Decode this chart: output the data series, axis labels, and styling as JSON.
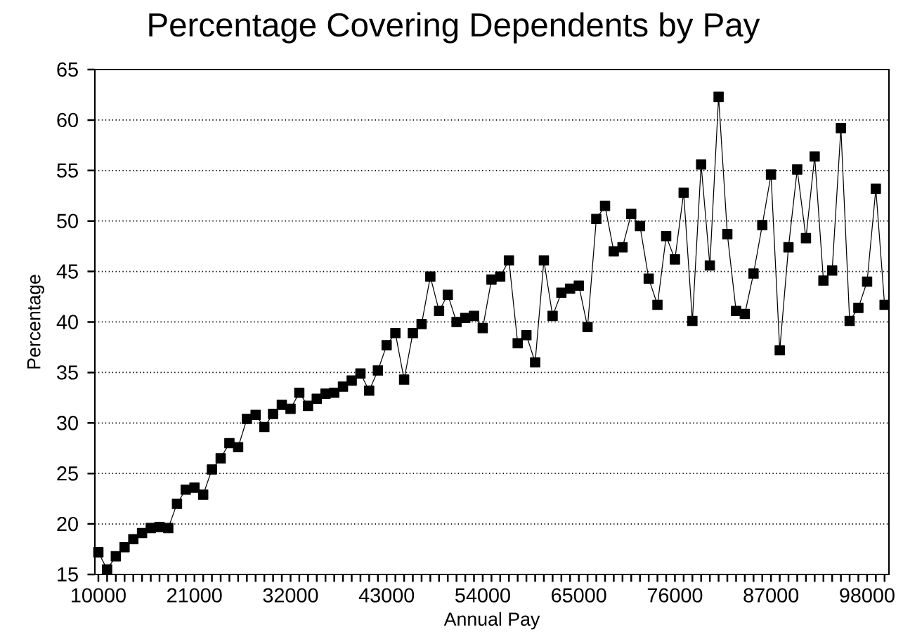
{
  "chart_data": {
    "type": "line",
    "title": "Percentage Covering Dependents by Pay",
    "xlabel": "Annual Pay",
    "ylabel": "Percentage",
    "x": [
      10000,
      11000,
      12000,
      13000,
      14000,
      15000,
      16000,
      17000,
      18000,
      19000,
      20000,
      21000,
      22000,
      23000,
      24000,
      25000,
      26000,
      27000,
      28000,
      29000,
      30000,
      31000,
      32000,
      33000,
      34000,
      35000,
      36000,
      37000,
      38000,
      39000,
      40000,
      41000,
      42000,
      43000,
      44000,
      45000,
      46000,
      47000,
      48000,
      49000,
      50000,
      51000,
      52000,
      53000,
      54000,
      55000,
      56000,
      57000,
      58000,
      59000,
      60000,
      61000,
      62000,
      63000,
      64000,
      65000,
      66000,
      67000,
      68000,
      69000,
      70000,
      71000,
      72000,
      73000,
      74000,
      75000,
      76000,
      77000,
      78000,
      79000,
      80000,
      81000,
      82000,
      83000,
      84000,
      85000,
      86000,
      87000,
      88000,
      89000,
      90000,
      91000,
      92000,
      93000,
      94000,
      95000,
      96000,
      97000,
      98000,
      99000,
      100000
    ],
    "series": [
      {
        "color": "#000000",
        "values": [
          17.2,
          15.5,
          16.8,
          17.7,
          18.5,
          19.1,
          19.6,
          19.7,
          19.6,
          22.0,
          23.4,
          23.6,
          22.9,
          25.4,
          26.5,
          28.0,
          27.6,
          30.4,
          30.8,
          29.6,
          30.9,
          31.8,
          31.4,
          33.0,
          31.7,
          32.4,
          32.9,
          33.0,
          33.6,
          34.2,
          34.9,
          33.2,
          35.2,
          37.7,
          38.9,
          34.3,
          38.9,
          39.8,
          44.5,
          41.1,
          42.7,
          40.0,
          40.4,
          40.6,
          39.4,
          44.2,
          44.5,
          46.1,
          37.9,
          38.7,
          36.0,
          46.1,
          40.6,
          42.9,
          43.3,
          43.6,
          39.5,
          50.2,
          51.5,
          47.0,
          47.4,
          50.7,
          49.5,
          44.3,
          41.7,
          48.5,
          46.2,
          52.8,
          40.1,
          55.6,
          45.6,
          62.3,
          48.7,
          41.1,
          40.8,
          44.8,
          49.6,
          54.6,
          37.2,
          47.4,
          55.1,
          48.3,
          56.4,
          44.1,
          45.1,
          59.2,
          40.1,
          41.4,
          44.0,
          53.2,
          41.7
        ]
      }
    ],
    "xlim": [
      9600,
      100500
    ],
    "ylim": [
      15,
      65
    ],
    "xticks": [
      10000,
      {
        "value": 11000,
        "label": null
      },
      {
        "value": 12000,
        "label": null
      },
      {
        "value": 13000,
        "label": null
      },
      {
        "value": 14000,
        "label": null
      },
      {
        "value": 15000,
        "label": null
      },
      {
        "value": 16000,
        "label": null
      },
      {
        "value": 17000,
        "label": null
      },
      {
        "value": 18000,
        "label": null
      },
      {
        "value": 19000,
        "label": null
      },
      {
        "value": 20000,
        "label": null
      },
      21000,
      {
        "value": 22000,
        "label": null
      },
      {
        "value": 23000,
        "label": null
      },
      {
        "value": 24000,
        "label": null
      },
      {
        "value": 25000,
        "label": null
      },
      {
        "value": 26000,
        "label": null
      },
      {
        "value": 27000,
        "label": null
      },
      {
        "value": 28000,
        "label": null
      },
      {
        "value": 29000,
        "label": null
      },
      {
        "value": 30000,
        "label": null
      },
      {
        "value": 31000,
        "label": null
      },
      32000,
      {
        "value": 33000,
        "label": null
      },
      {
        "value": 34000,
        "label": null
      },
      {
        "value": 35000,
        "label": null
      },
      {
        "value": 36000,
        "label": null
      },
      {
        "value": 37000,
        "label": null
      },
      {
        "value": 38000,
        "label": null
      },
      {
        "value": 39000,
        "label": null
      },
      {
        "value": 40000,
        "label": null
      },
      {
        "value": 41000,
        "label": null
      },
      {
        "value": 42000,
        "label": null
      },
      43000,
      {
        "value": 44000,
        "label": null
      },
      {
        "value": 45000,
        "label": null
      },
      {
        "value": 46000,
        "label": null
      },
      {
        "value": 47000,
        "label": null
      },
      {
        "value": 48000,
        "label": null
      },
      {
        "value": 49000,
        "label": null
      },
      {
        "value": 50000,
        "label": null
      },
      {
        "value": 51000,
        "label": null
      },
      {
        "value": 52000,
        "label": null
      },
      {
        "value": 53000,
        "label": null
      },
      54000,
      {
        "value": 55000,
        "label": null
      },
      {
        "value": 56000,
        "label": null
      },
      {
        "value": 57000,
        "label": null
      },
      {
        "value": 58000,
        "label": null
      },
      {
        "value": 59000,
        "label": null
      },
      {
        "value": 60000,
        "label": null
      },
      {
        "value": 61000,
        "label": null
      },
      {
        "value": 62000,
        "label": null
      },
      {
        "value": 63000,
        "label": null
      },
      {
        "value": 64000,
        "label": null
      },
      65000,
      {
        "value": 66000,
        "label": null
      },
      {
        "value": 67000,
        "label": null
      },
      {
        "value": 68000,
        "label": null
      },
      {
        "value": 69000,
        "label": null
      },
      {
        "value": 70000,
        "label": null
      },
      {
        "value": 71000,
        "label": null
      },
      {
        "value": 72000,
        "label": null
      },
      {
        "value": 73000,
        "label": null
      },
      {
        "value": 74000,
        "label": null
      },
      {
        "value": 75000,
        "label": null
      },
      76000,
      {
        "value": 77000,
        "label": null
      },
      {
        "value": 78000,
        "label": null
      },
      {
        "value": 79000,
        "label": null
      },
      {
        "value": 80000,
        "label": null
      },
      {
        "value": 81000,
        "label": null
      },
      {
        "value": 82000,
        "label": null
      },
      {
        "value": 83000,
        "label": null
      },
      {
        "value": 84000,
        "label": null
      },
      {
        "value": 85000,
        "label": null
      },
      {
        "value": 86000,
        "label": null
      },
      87000,
      {
        "value": 88000,
        "label": null
      },
      {
        "value": 89000,
        "label": null
      },
      {
        "value": 90000,
        "label": null
      },
      {
        "value": 91000,
        "label": null
      },
      {
        "value": 92000,
        "label": null
      },
      {
        "value": 93000,
        "label": null
      },
      {
        "value": 94000,
        "label": null
      },
      {
        "value": 95000,
        "label": null
      },
      {
        "value": 96000,
        "label": null
      },
      {
        "value": 97000,
        "label": null
      },
      98000,
      {
        "value": 99000,
        "label": null
      },
      {
        "value": 100000,
        "label": null
      }
    ],
    "yticks": [
      15,
      20,
      25,
      30,
      35,
      40,
      45,
      50,
      55,
      60,
      65
    ],
    "grid": "y",
    "marker": "square",
    "line_style": "solid"
  }
}
